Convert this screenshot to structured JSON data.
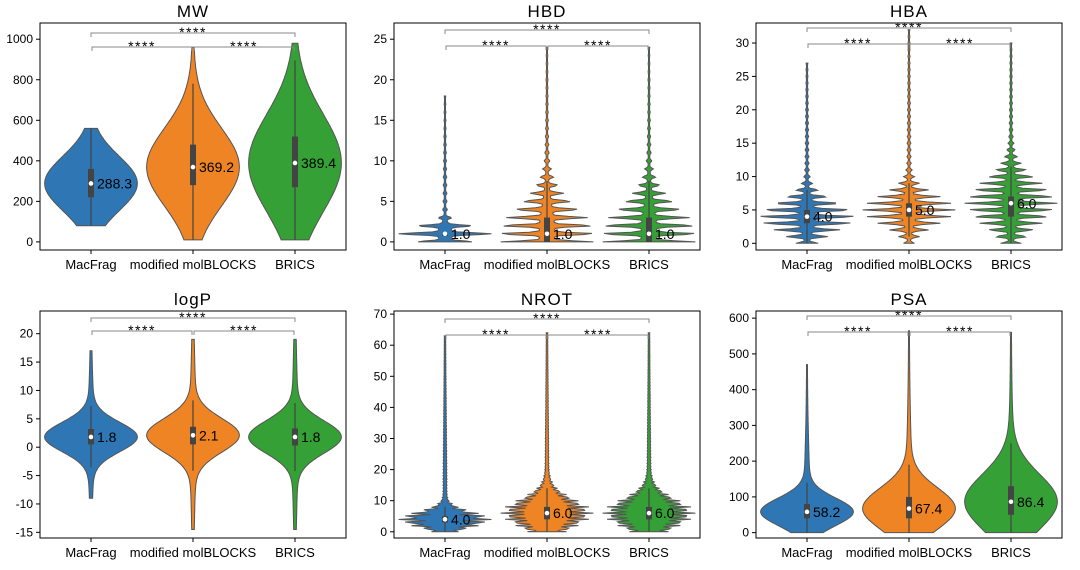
{
  "colors": {
    "MacFrag": "#2f77b4",
    "modified molBLOCKS": "#ee8424",
    "BRICS": "#35a036",
    "frame": "#000000",
    "bracket": "#888888"
  },
  "significance": "****",
  "chart_data": [
    {
      "type": "violin",
      "title": "MW",
      "categories": [
        "MacFrag",
        "modified molBLOCKS",
        "BRICS"
      ],
      "ylim": [
        -40,
        1080
      ],
      "yticks": [
        0,
        200,
        400,
        600,
        800,
        1000
      ],
      "medians": [
        288.3,
        369.2,
        389.4
      ],
      "median_labels": [
        "288.3",
        "369.2",
        "389.4"
      ],
      "ranges": [
        [
          80,
          560
        ],
        [
          10,
          960
        ],
        [
          10,
          980
        ]
      ],
      "iqr": [
        [
          220,
          360
        ],
        [
          280,
          480
        ],
        [
          270,
          520
        ]
      ],
      "discrete": false,
      "grid": false
    },
    {
      "type": "violin",
      "title": "HBD",
      "categories": [
        "MacFrag",
        "modified molBLOCKS",
        "BRICS"
      ],
      "ylim": [
        -1,
        27
      ],
      "yticks": [
        0,
        5,
        10,
        15,
        20,
        25
      ],
      "medians": [
        1.0,
        1.0,
        1.0
      ],
      "median_labels": [
        "1.0",
        "1.0",
        "1.0"
      ],
      "ranges": [
        [
          0,
          18
        ],
        [
          0,
          24
        ],
        [
          0,
          24
        ]
      ],
      "iqr": [
        [
          1,
          1
        ],
        [
          0,
          3
        ],
        [
          0,
          3
        ]
      ],
      "discrete": true,
      "grid": false
    },
    {
      "type": "violin",
      "title": "HBA",
      "categories": [
        "MacFrag",
        "modified molBLOCKS",
        "BRICS"
      ],
      "ylim": [
        -1,
        33
      ],
      "yticks": [
        0,
        5,
        10,
        15,
        20,
        25,
        30
      ],
      "medians": [
        4.0,
        5.0,
        6.0
      ],
      "median_labels": [
        "4.0",
        "5.0",
        "6.0"
      ],
      "ranges": [
        [
          0,
          27
        ],
        [
          0,
          32
        ],
        [
          0,
          30
        ]
      ],
      "iqr": [
        [
          3,
          5
        ],
        [
          4,
          6
        ],
        [
          4,
          7
        ]
      ],
      "discrete": true,
      "grid": false
    },
    {
      "type": "violin",
      "title": "logP",
      "categories": [
        "MacFrag",
        "modified molBLOCKS",
        "BRICS"
      ],
      "ylim": [
        -16,
        24
      ],
      "yticks": [
        -15,
        -10,
        -5,
        0,
        5,
        10,
        15,
        20
      ],
      "medians": [
        1.8,
        2.1,
        1.8
      ],
      "median_labels": [
        "1.8",
        "2.1",
        "1.8"
      ],
      "ranges": [
        [
          -9,
          17
        ],
        [
          -14.5,
          19
        ],
        [
          -14.5,
          19
        ]
      ],
      "iqr": [
        [
          0.5,
          3.2
        ],
        [
          0.5,
          3.6
        ],
        [
          0.3,
          3.3
        ]
      ],
      "discrete": false,
      "grid": false
    },
    {
      "type": "violin",
      "title": "NROT",
      "categories": [
        "MacFrag",
        "modified molBLOCKS",
        "BRICS"
      ],
      "ylim": [
        -2,
        71
      ],
      "yticks": [
        0,
        10,
        20,
        30,
        40,
        50,
        60,
        70
      ],
      "medians": [
        4.0,
        6.0,
        6.0
      ],
      "median_labels": [
        "4.0",
        "6.0",
        "6.0"
      ],
      "ranges": [
        [
          0,
          63
        ],
        [
          0,
          64
        ],
        [
          0,
          64
        ]
      ],
      "iqr": [
        [
          3,
          5
        ],
        [
          4,
          8
        ],
        [
          4,
          8
        ]
      ],
      "discrete": true,
      "grid": false
    },
    {
      "type": "violin",
      "title": "PSA",
      "categories": [
        "MacFrag",
        "modified molBLOCKS",
        "BRICS"
      ],
      "ylim": [
        -15,
        620
      ],
      "yticks": [
        0,
        100,
        200,
        300,
        400,
        500,
        600
      ],
      "medians": [
        58.2,
        67.4,
        86.4
      ],
      "median_labels": [
        "58.2",
        "67.4",
        "86.4"
      ],
      "ranges": [
        [
          0,
          470
        ],
        [
          0,
          565
        ],
        [
          0,
          560
        ]
      ],
      "iqr": [
        [
          40,
          80
        ],
        [
          40,
          100
        ],
        [
          50,
          130
        ]
      ],
      "discrete": false,
      "grid": false
    }
  ]
}
